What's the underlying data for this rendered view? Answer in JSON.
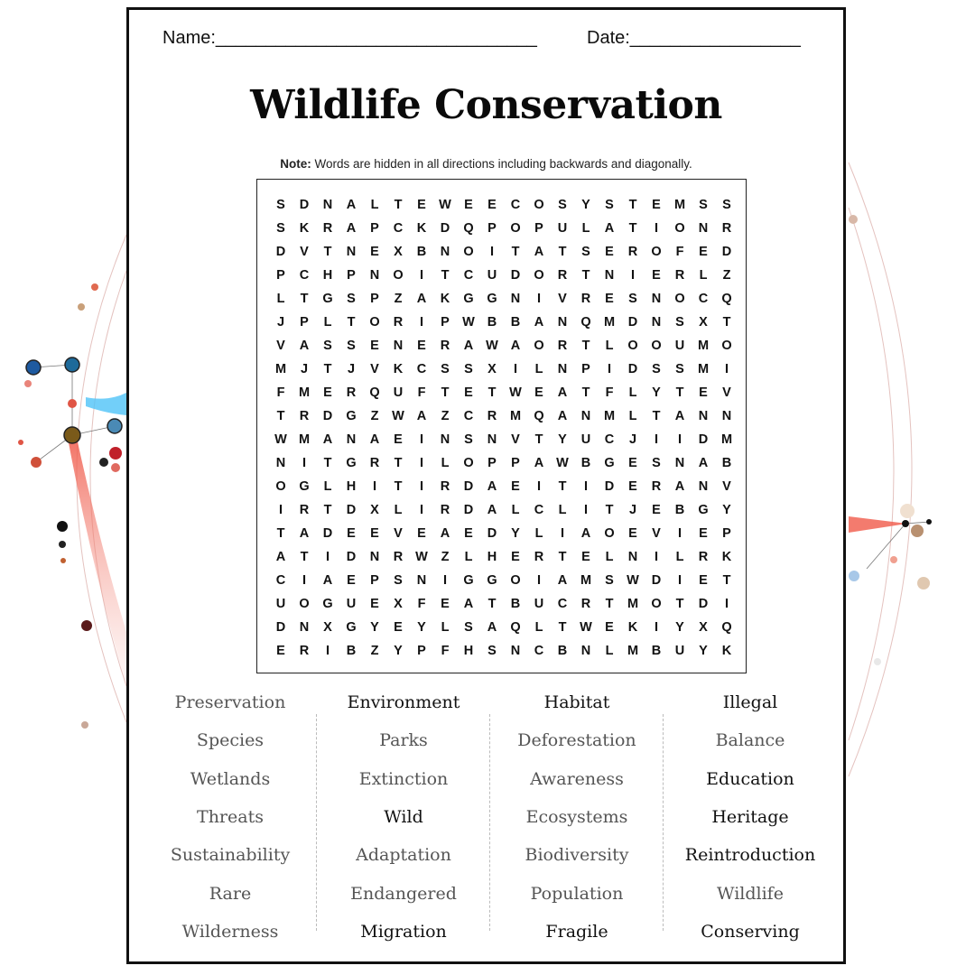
{
  "header": {
    "name_label": "Name:________________________________",
    "date_label": "Date:_________________"
  },
  "title": "Wildlife Conservation",
  "note": {
    "bold": "Note:",
    "text": " Words are hidden in all directions including backwards and diagonally."
  },
  "grid": [
    "SDNALTEWEECOSYSTEMSS",
    "SKRAPCKDQPOPULATIONR",
    "DVTNEXBNOITATSEROFED",
    "PCHPNOITCUDORTNIERLZ",
    "LTGSPZAKGGNIVRESNOCQ",
    "JPLTORIPWBBANQMDNSXT",
    "VASSENERAWAORTLOOUMO",
    "MJTJVKCSSXILNPIDSSMI",
    "FMERQUFTETWEATFLYTEV",
    "TRDGZWAZCRMQANMLTANN",
    "WMANAEINSNVTYUCJIIDM",
    "NITGRTILOPPAWBGESNAB",
    "OGLHITIRDAEITIDERANV",
    "IRTDXLIRDALCLITJEBGY",
    "TADEEVEAEDYLIAOEVIEP",
    "ATIDNRWZLHERTELNILRK",
    "CIAEPSNIGGOIAMSWDIET",
    "UOGUEXFEATBUCRTMOTDI",
    "DNXGYEYLSAQLTWEKIYXQ",
    "ERIBZYPFHSNCBNLMBUYK"
  ],
  "word_columns": [
    [
      "Preservation",
      "Species",
      "Wetlands",
      "Threats",
      "Sustainability",
      "Rare",
      "Wilderness"
    ],
    [
      "Environment",
      "Parks",
      "Extinction",
      "Wild",
      "Adaptation",
      "Endangered",
      "Migration"
    ],
    [
      "Habitat",
      "Deforestation",
      "Awareness",
      "Ecosystems",
      "Biodiversity",
      "Population",
      "Fragile"
    ],
    [
      "Illegal",
      "Balance",
      "Education",
      "Heritage",
      "Reintroduction",
      "Wildlife",
      "Conserving"
    ]
  ]
}
